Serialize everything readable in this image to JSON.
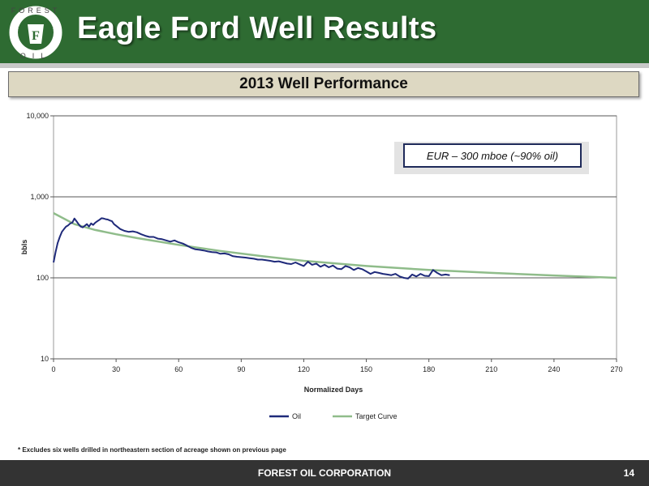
{
  "header": {
    "title": "Eagle Ford Well Results",
    "logo": {
      "top_text": "FOREST",
      "bottom_text": "OIL",
      "icon": "keystone-f-logo-icon"
    },
    "colors": {
      "header_bg": "#2e6b32",
      "title_text": "#ffffff"
    }
  },
  "subtitle": "2013 Well Performance",
  "chart_data": {
    "type": "line",
    "xlabel": "Normalized Days",
    "ylabel": "bbls",
    "xlim": [
      0,
      270
    ],
    "ylim": [
      10,
      10000
    ],
    "y_scale": "log",
    "x_ticks": [
      0,
      30,
      60,
      90,
      120,
      150,
      180,
      210,
      240,
      270
    ],
    "y_ticks": [
      10,
      100,
      1000,
      10000
    ],
    "y_tick_labels": [
      "10",
      "100",
      "1,000",
      "10,000"
    ],
    "grid": "horizontal major",
    "legend_position": "bottom",
    "annotation": "EUR – 300 mboe (~90% oil)",
    "series": [
      {
        "name": "Oil",
        "color": "#1f2a7a",
        "x": [
          0,
          1,
          2,
          3,
          4,
          5,
          6,
          7,
          8,
          9,
          10,
          11,
          12,
          13,
          14,
          15,
          16,
          17,
          18,
          19,
          20,
          21,
          22,
          23,
          24,
          25,
          26,
          27,
          28,
          29,
          30,
          32,
          34,
          36,
          38,
          40,
          42,
          44,
          46,
          48,
          50,
          52,
          54,
          56,
          58,
          60,
          62,
          64,
          66,
          68,
          70,
          72,
          74,
          76,
          78,
          80,
          82,
          84,
          86,
          88,
          90,
          92,
          94,
          96,
          98,
          100,
          102,
          104,
          106,
          108,
          110,
          112,
          114,
          116,
          118,
          120,
          122,
          124,
          126,
          128,
          130,
          132,
          134,
          136,
          138,
          140,
          142,
          144,
          146,
          148,
          150,
          152,
          154,
          156,
          158,
          160,
          162,
          164,
          166,
          168,
          170,
          172,
          174,
          176,
          178,
          180,
          182,
          184,
          186,
          188,
          190
        ],
        "y": [
          155,
          210,
          270,
          320,
          370,
          400,
          430,
          445,
          470,
          480,
          540,
          500,
          460,
          430,
          420,
          440,
          460,
          430,
          470,
          450,
          480,
          500,
          520,
          545,
          540,
          530,
          525,
          510,
          500,
          460,
          440,
          400,
          380,
          370,
          375,
          365,
          345,
          330,
          320,
          320,
          305,
          300,
          290,
          280,
          290,
          275,
          265,
          250,
          235,
          225,
          222,
          218,
          212,
          208,
          206,
          198,
          200,
          195,
          185,
          182,
          180,
          178,
          175,
          172,
          168,
          168,
          165,
          162,
          158,
          160,
          155,
          150,
          148,
          155,
          147,
          140,
          158,
          145,
          150,
          137,
          145,
          135,
          142,
          130,
          128,
          140,
          135,
          125,
          132,
          128,
          120,
          112,
          118,
          115,
          112,
          110,
          108,
          112,
          104,
          100,
          98,
          110,
          104,
          112,
          106,
          105,
          125,
          115,
          108,
          110,
          108
        ]
      },
      {
        "name": "Target Curve",
        "color": "#8fbc8a",
        "x": [
          0,
          10,
          20,
          30,
          40,
          60,
          80,
          100,
          120,
          150,
          180,
          210,
          240,
          270
        ],
        "y": [
          630,
          460,
          390,
          345,
          310,
          255,
          215,
          185,
          162,
          140,
          125,
          115,
          107,
          100
        ]
      }
    ]
  },
  "footnote": "* Excludes six wells drilled in northeastern section of acreage shown on previous page",
  "footer": {
    "company": "FOREST OIL CORPORATION",
    "page": "14",
    "bg_color": "#333333"
  }
}
